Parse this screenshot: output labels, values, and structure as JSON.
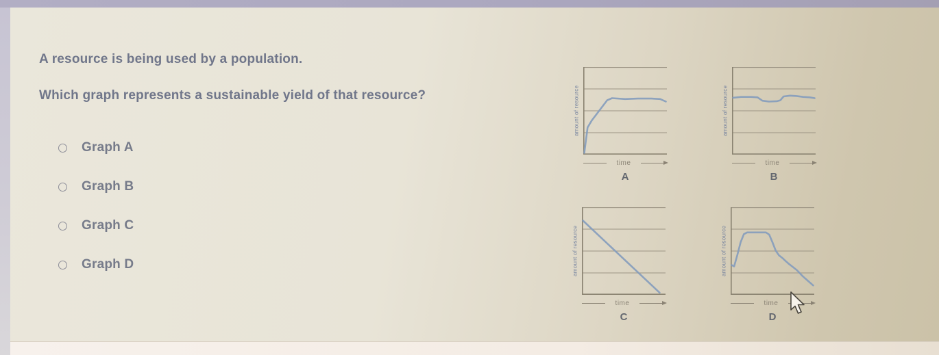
{
  "question": {
    "line1": "A resource is being used by a population.",
    "line2": "Which graph represents a sustainable yield of that resource?"
  },
  "options": [
    {
      "label": "Graph A",
      "selected": false
    },
    {
      "label": "Graph B",
      "selected": false
    },
    {
      "label": "Graph C",
      "selected": false
    },
    {
      "label": "Graph D",
      "selected": false
    }
  ],
  "colors": {
    "line": "#849cbc",
    "grid": "#9c9484",
    "axis": "#898270",
    "question_text": "#70768a"
  },
  "cursor": {
    "type": "arrow-pointer"
  },
  "chart_data": [
    {
      "id": "A",
      "type": "line",
      "label": "A",
      "xlabel": "time",
      "ylabel": "amount of resource",
      "x_range": [
        0,
        1
      ],
      "y_range": [
        0,
        1
      ],
      "grid": "3 horizontal gridlines at quarter heights plus top border",
      "points": [
        [
          0,
          0
        ],
        [
          0.04,
          0.3
        ],
        [
          0.09,
          0.38
        ],
        [
          0.28,
          0.62
        ],
        [
          0.34,
          0.645
        ],
        [
          0.5,
          0.635
        ],
        [
          0.66,
          0.64
        ],
        [
          0.82,
          0.64
        ],
        [
          0.93,
          0.635
        ],
        [
          1.0,
          0.605
        ]
      ]
    },
    {
      "id": "B",
      "type": "line",
      "label": "B",
      "xlabel": "time",
      "ylabel": "amount of resource",
      "x_range": [
        0,
        1
      ],
      "y_range": [
        0,
        1
      ],
      "grid": "3 horizontal gridlines at quarter heights plus top border",
      "points": [
        [
          0,
          0.65
        ],
        [
          0.1,
          0.66
        ],
        [
          0.22,
          0.66
        ],
        [
          0.3,
          0.655
        ],
        [
          0.36,
          0.615
        ],
        [
          0.44,
          0.605
        ],
        [
          0.54,
          0.61
        ],
        [
          0.58,
          0.62
        ],
        [
          0.62,
          0.665
        ],
        [
          0.7,
          0.675
        ],
        [
          0.78,
          0.67
        ],
        [
          0.86,
          0.66
        ],
        [
          0.94,
          0.655
        ],
        [
          1.0,
          0.645
        ]
      ]
    },
    {
      "id": "C",
      "type": "line",
      "label": "C",
      "xlabel": "time",
      "ylabel": "amount of resource",
      "x_range": [
        0,
        1
      ],
      "y_range": [
        0,
        1
      ],
      "grid": "3 horizontal gridlines at quarter heights plus top border",
      "points": [
        [
          0,
          0.855
        ],
        [
          0.47,
          0.43
        ],
        [
          0.94,
          0.005
        ]
      ]
    },
    {
      "id": "D",
      "type": "line",
      "label": "D",
      "xlabel": "time",
      "ylabel": "amount of resource",
      "x_range": [
        0,
        1
      ],
      "y_range": [
        0,
        1
      ],
      "grid": "3 horizontal gridlines at quarter heights plus top border",
      "points": [
        [
          0,
          0.33
        ],
        [
          0.03,
          0.315
        ],
        [
          0.07,
          0.45
        ],
        [
          0.11,
          0.6
        ],
        [
          0.15,
          0.695
        ],
        [
          0.19,
          0.715
        ],
        [
          0.3,
          0.715
        ],
        [
          0.42,
          0.715
        ],
        [
          0.46,
          0.69
        ],
        [
          0.5,
          0.6
        ],
        [
          0.54,
          0.5
        ],
        [
          0.58,
          0.445
        ],
        [
          0.62,
          0.415
        ],
        [
          0.66,
          0.38
        ],
        [
          0.7,
          0.345
        ],
        [
          0.74,
          0.315
        ],
        [
          0.8,
          0.27
        ],
        [
          0.87,
          0.2
        ],
        [
          0.94,
          0.14
        ],
        [
          1.0,
          0.09
        ]
      ]
    }
  ]
}
